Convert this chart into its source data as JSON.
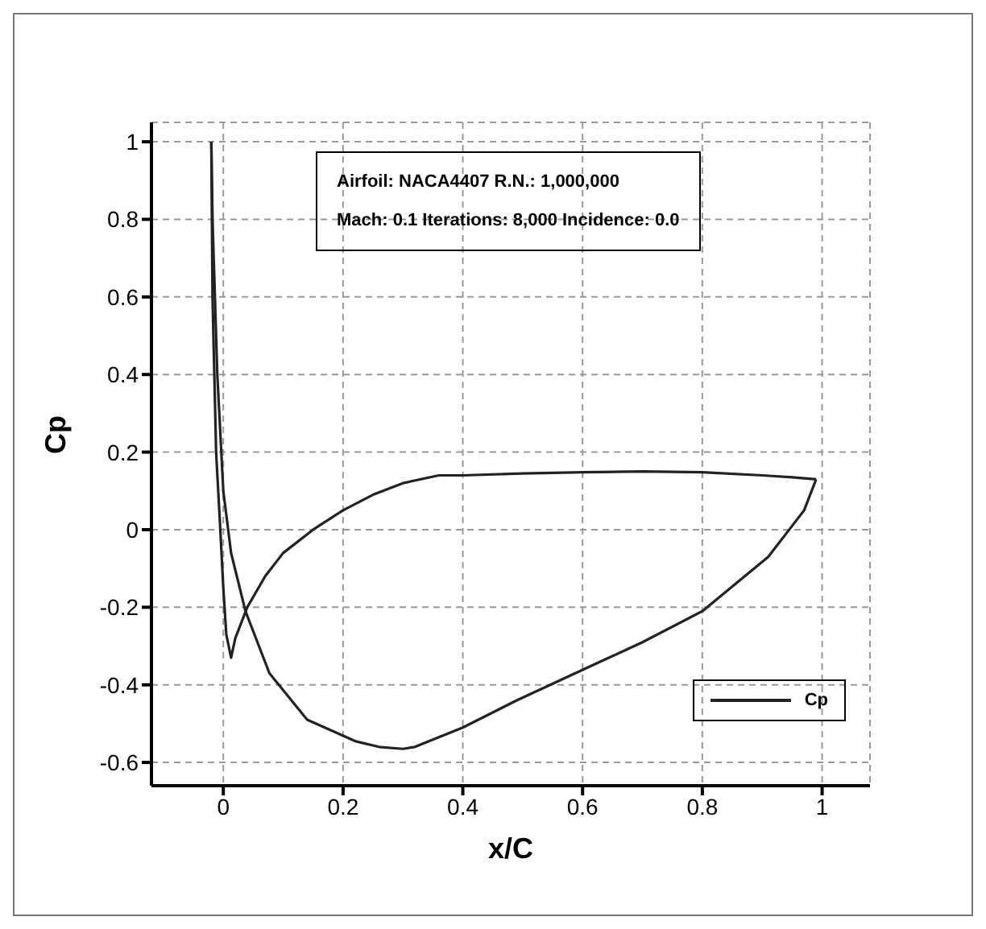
{
  "chart_data": {
    "type": "line",
    "xlabel": "x/C",
    "ylabel": "Cp",
    "annotations": [
      "Airfoil: NACA4407   R.N.: 1,000,000",
      "Mach: 0.1  Iterations: 8,000  Incidence: 0.0"
    ],
    "series": [
      {
        "name": "Cp",
        "color": "#222222",
        "x": [
          -0.02,
          -0.018,
          -0.012,
          -0.005,
          0.0,
          0.005,
          0.013,
          0.02,
          0.04,
          0.07,
          0.1,
          0.15,
          0.2,
          0.25,
          0.3,
          0.36,
          0.4,
          0.5,
          0.6,
          0.7,
          0.8,
          0.9,
          0.95,
          0.99
        ],
        "values": [
          1.0,
          0.6,
          0.2,
          0.0,
          -0.15,
          -0.27,
          -0.33,
          -0.28,
          -0.2,
          -0.12,
          -0.06,
          0.0,
          0.05,
          0.09,
          0.12,
          0.14,
          0.14,
          0.145,
          0.148,
          0.15,
          0.148,
          0.14,
          0.135,
          0.13
        ]
      },
      {
        "color": "#222222",
        "x": [
          -0.02,
          -0.018,
          -0.01,
          0.0,
          0.013,
          0.037,
          0.077,
          0.14,
          0.22,
          0.26,
          0.3,
          0.32,
          0.4,
          0.49,
          0.63,
          0.7,
          0.8,
          0.91,
          0.97,
          0.99
        ],
        "values": [
          1.0,
          0.8,
          0.4,
          0.1,
          -0.06,
          -0.21,
          -0.37,
          -0.49,
          -0.545,
          -0.56,
          -0.565,
          -0.56,
          -0.51,
          -0.44,
          -0.34,
          -0.29,
          -0.21,
          -0.07,
          0.05,
          0.13
        ]
      }
    ],
    "xlim": [
      -0.12,
      1.08
    ],
    "ylim": [
      -0.66,
      1.05
    ],
    "xticks": [
      0,
      0.2,
      0.4,
      0.6,
      0.8,
      1
    ],
    "yticks": [
      -0.6,
      -0.4,
      -0.2,
      0,
      0.2,
      0.4,
      0.6,
      0.8,
      1
    ],
    "grid": true,
    "legend": "bottom right",
    "marker": "none",
    "line_style": "solid"
  }
}
